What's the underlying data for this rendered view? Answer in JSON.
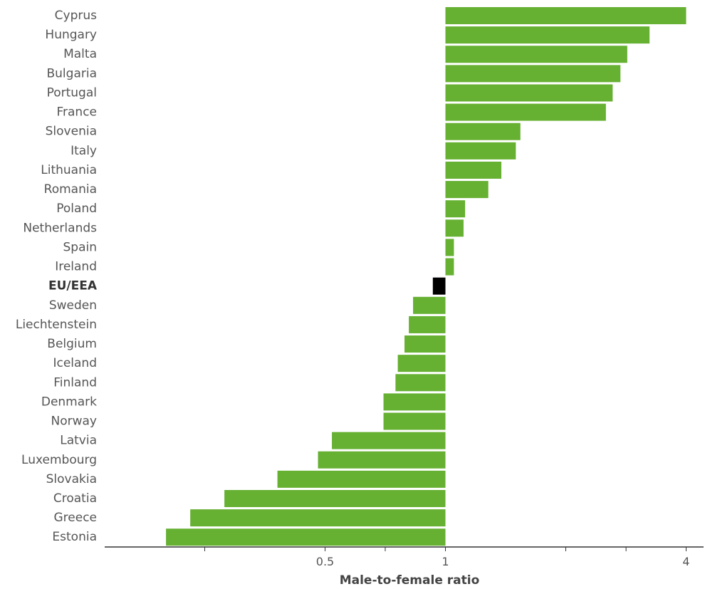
{
  "chart_data": {
    "type": "bar",
    "orientation": "horizontal",
    "xscale": "log2",
    "baseline": 1,
    "xlim": [
      0.17,
      4.6
    ],
    "xlabel": "Male-to-female ratio",
    "ylabel": "",
    "title": "",
    "xticks": [
      {
        "value": 0.25,
        "label": ""
      },
      {
        "value": 0.5,
        "label": "0.5"
      },
      {
        "value": 0.707,
        "label": ""
      },
      {
        "value": 1,
        "label": "1"
      },
      {
        "value": 2,
        "label": ""
      },
      {
        "value": 2.83,
        "label": ""
      },
      {
        "value": 4,
        "label": "4"
      }
    ],
    "bar_color": "#66b032",
    "highlight_color": "#000000",
    "categories": [
      "Cyprus",
      "Hungary",
      "Malta",
      "Bulgaria",
      "Portugal",
      "France",
      "Slovenia",
      "Italy",
      "Lithuania",
      "Romania",
      "Poland",
      "Netherlands",
      "Spain",
      "Ireland",
      "EU/EEA",
      "Sweden",
      "Liechtenstein",
      "Belgium",
      "Iceland",
      "Finland",
      "Denmark",
      "Norway",
      "Latvia",
      "Luxembourg",
      "Slovakia",
      "Croatia",
      "Greece",
      "Estonia"
    ],
    "values": [
      4.0,
      3.24,
      2.85,
      2.74,
      2.62,
      2.52,
      1.54,
      1.5,
      1.38,
      1.28,
      1.12,
      1.11,
      1.05,
      1.05,
      0.93,
      0.83,
      0.81,
      0.79,
      0.76,
      0.75,
      0.7,
      0.7,
      0.52,
      0.48,
      0.38,
      0.28,
      0.23,
      0.2
    ],
    "highlighted": [
      "EU/EEA"
    ]
  }
}
